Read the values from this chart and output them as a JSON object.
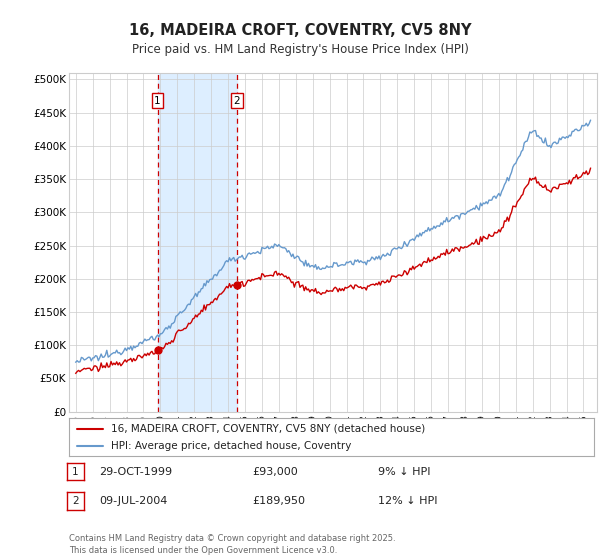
{
  "title": "16, MADEIRA CROFT, COVENTRY, CV5 8NY",
  "subtitle": "Price paid vs. HM Land Registry's House Price Index (HPI)",
  "ylabel_ticks": [
    "£0",
    "£50K",
    "£100K",
    "£150K",
    "£200K",
    "£250K",
    "£300K",
    "£350K",
    "£400K",
    "£450K",
    "£500K"
  ],
  "ytick_values": [
    0,
    50000,
    100000,
    150000,
    200000,
    250000,
    300000,
    350000,
    400000,
    450000,
    500000
  ],
  "ylim": [
    0,
    510000
  ],
  "xlim_start": 1994.6,
  "xlim_end": 2025.8,
  "purchase1": {
    "date_x": 1999.83,
    "price": 93000,
    "label": "1",
    "note": "29-OCT-1999",
    "price_str": "£93,000",
    "hpi_note": "9% ↓ HPI"
  },
  "purchase2": {
    "date_x": 2004.52,
    "price": 189950,
    "label": "2",
    "note": "09-JUL-2004",
    "price_str": "£189,950",
    "hpi_note": "12% ↓ HPI"
  },
  "legend_line1": "16, MADEIRA CROFT, COVENTRY, CV5 8NY (detached house)",
  "legend_line2": "HPI: Average price, detached house, Coventry",
  "footer": "Contains HM Land Registry data © Crown copyright and database right 2025.\nThis data is licensed under the Open Government Licence v3.0.",
  "line_color_red": "#cc0000",
  "line_color_blue": "#6699cc",
  "shade_color": "#ddeeff",
  "grid_color": "#cccccc",
  "background_color": "#ffffff"
}
